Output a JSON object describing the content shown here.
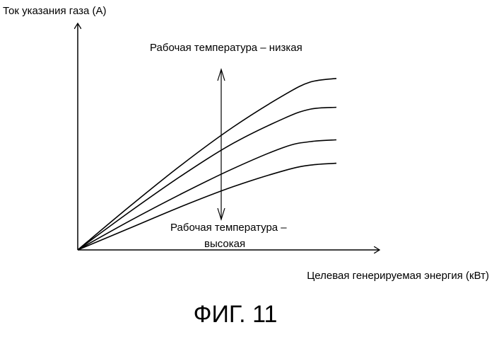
{
  "chart_data": {
    "type": "line",
    "title": "",
    "xlabel": "Целевая генерируемая энергия (кВт)",
    "ylabel": "Ток указания газа (А)",
    "xlim": [
      0,
      1
    ],
    "ylim": [
      0,
      1
    ],
    "grid": false,
    "series": [
      {
        "x": [
          0,
          0.2,
          0.4,
          0.6,
          0.8,
          0.9,
          1
        ],
        "values": [
          0,
          0.24,
          0.47,
          0.68,
          0.86,
          0.93,
          0.95
        ]
      },
      {
        "x": [
          0,
          0.2,
          0.4,
          0.6,
          0.8,
          0.9,
          1
        ],
        "values": [
          0,
          0.21,
          0.41,
          0.59,
          0.73,
          0.78,
          0.79
        ]
      },
      {
        "x": [
          0,
          0.2,
          0.4,
          0.6,
          0.8,
          0.9,
          1
        ],
        "values": [
          0,
          0.16,
          0.31,
          0.45,
          0.57,
          0.6,
          0.61
        ]
      },
      {
        "x": [
          0,
          0.2,
          0.4,
          0.6,
          0.8,
          0.9,
          1
        ],
        "values": [
          0,
          0.12,
          0.24,
          0.35,
          0.44,
          0.47,
          0.48
        ]
      }
    ],
    "annotations": {
      "top": "Рабочая температура – низкая",
      "bottom_line1": "Рабочая температура –",
      "bottom_line2": "высокая"
    },
    "caption": "ФИГ. 11"
  }
}
